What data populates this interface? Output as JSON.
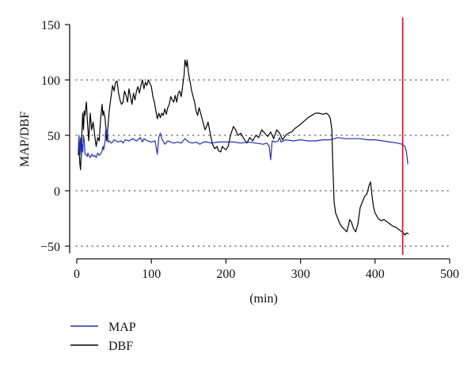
{
  "chart_data": {
    "type": "line",
    "title": "",
    "xlabel": "(min)",
    "ylabel": "MAP/DBF",
    "xlim": [
      -5,
      505
    ],
    "ylim": [
      -55,
      155
    ],
    "x_ticks": [
      0,
      100,
      200,
      300,
      400,
      500
    ],
    "y_ticks": [
      -50,
      0,
      50,
      100,
      150
    ],
    "grid": {
      "horizontal_dotted_at": [
        -50,
        0,
        50,
        100
      ]
    },
    "marker_line": {
      "x": 437,
      "color": "#c8102e"
    },
    "legend": {
      "placement": "bottom-left"
    },
    "series": [
      {
        "name": "MAP",
        "color": "#1f2fb5",
        "points": [
          [
            2,
            36
          ],
          [
            3,
            50
          ],
          [
            4,
            32
          ],
          [
            5,
            48
          ],
          [
            6,
            30
          ],
          [
            7,
            42
          ],
          [
            8,
            35
          ],
          [
            9,
            50
          ],
          [
            10,
            45
          ],
          [
            11,
            33
          ],
          [
            12,
            33
          ],
          [
            14,
            31
          ],
          [
            15,
            34
          ],
          [
            16,
            32
          ],
          [
            18,
            30
          ],
          [
            20,
            33
          ],
          [
            22,
            31
          ],
          [
            24,
            32
          ],
          [
            26,
            30
          ],
          [
            28,
            34
          ],
          [
            30,
            32
          ],
          [
            32,
            33
          ],
          [
            34,
            36
          ],
          [
            35,
            40
          ],
          [
            36,
            37
          ],
          [
            38,
            45
          ],
          [
            39,
            58
          ],
          [
            40,
            50
          ],
          [
            41,
            55
          ],
          [
            42,
            44
          ],
          [
            44,
            45
          ],
          [
            46,
            43
          ],
          [
            48,
            44
          ],
          [
            50,
            46
          ],
          [
            55,
            44
          ],
          [
            60,
            45
          ],
          [
            62,
            43
          ],
          [
            65,
            46
          ],
          [
            70,
            45
          ],
          [
            75,
            47
          ],
          [
            80,
            45
          ],
          [
            85,
            48
          ],
          [
            88,
            44
          ],
          [
            90,
            47
          ],
          [
            95,
            45
          ],
          [
            100,
            44
          ],
          [
            105,
            45
          ],
          [
            108,
            33
          ],
          [
            110,
            48
          ],
          [
            112,
            52
          ],
          [
            114,
            47
          ],
          [
            118,
            42
          ],
          [
            122,
            45
          ],
          [
            126,
            44
          ],
          [
            130,
            43
          ],
          [
            135,
            44
          ],
          [
            140,
            43
          ],
          [
            145,
            47
          ],
          [
            150,
            44
          ],
          [
            155,
            43
          ],
          [
            160,
            44
          ],
          [
            165,
            42
          ],
          [
            170,
            44
          ],
          [
            175,
            44
          ],
          [
            180,
            43
          ],
          [
            190,
            44
          ],
          [
            200,
            44
          ],
          [
            210,
            44
          ],
          [
            220,
            43
          ],
          [
            230,
            44
          ],
          [
            240,
            43
          ],
          [
            250,
            42
          ],
          [
            255,
            43
          ],
          [
            258,
            40
          ],
          [
            260,
            28
          ],
          [
            262,
            45
          ],
          [
            266,
            44
          ],
          [
            270,
            45
          ],
          [
            272,
            48
          ],
          [
            274,
            44
          ],
          [
            280,
            46
          ],
          [
            290,
            45
          ],
          [
            300,
            46
          ],
          [
            310,
            45
          ],
          [
            320,
            45
          ],
          [
            330,
            46
          ],
          [
            340,
            46
          ],
          [
            345,
            47
          ],
          [
            350,
            48
          ],
          [
            360,
            47
          ],
          [
            370,
            47
          ],
          [
            380,
            47
          ],
          [
            390,
            46
          ],
          [
            400,
            46
          ],
          [
            410,
            45
          ],
          [
            420,
            44
          ],
          [
            430,
            43
          ],
          [
            436,
            42
          ],
          [
            440,
            40
          ],
          [
            442,
            35
          ],
          [
            444,
            24
          ]
        ]
      },
      {
        "name": "DBF",
        "color": "#000000",
        "points": [
          [
            2,
            32
          ],
          [
            3,
            40
          ],
          [
            4,
            25
          ],
          [
            5,
            19
          ],
          [
            6,
            35
          ],
          [
            7,
            55
          ],
          [
            8,
            70
          ],
          [
            9,
            55
          ],
          [
            10,
            72
          ],
          [
            11,
            68
          ],
          [
            12,
            75
          ],
          [
            13,
            80
          ],
          [
            14,
            65
          ],
          [
            15,
            55
          ],
          [
            16,
            45
          ],
          [
            18,
            70
          ],
          [
            20,
            55
          ],
          [
            22,
            62
          ],
          [
            24,
            50
          ],
          [
            25,
            45
          ],
          [
            26,
            40
          ],
          [
            28,
            48
          ],
          [
            30,
            45
          ],
          [
            32,
            65
          ],
          [
            34,
            78
          ],
          [
            35,
            68
          ],
          [
            36,
            72
          ],
          [
            38,
            65
          ],
          [
            40,
            45
          ],
          [
            42,
            60
          ],
          [
            44,
            75
          ],
          [
            46,
            85
          ],
          [
            48,
            95
          ],
          [
            50,
            90
          ],
          [
            52,
            98
          ],
          [
            54,
            99
          ],
          [
            56,
            88
          ],
          [
            58,
            82
          ],
          [
            60,
            78
          ],
          [
            62,
            80
          ],
          [
            64,
            90
          ],
          [
            66,
            86
          ],
          [
            68,
            80
          ],
          [
            70,
            92
          ],
          [
            72,
            85
          ],
          [
            74,
            78
          ],
          [
            76,
            88
          ],
          [
            78,
            82
          ],
          [
            80,
            90
          ],
          [
            82,
            94
          ],
          [
            84,
            88
          ],
          [
            86,
            95
          ],
          [
            88,
            100
          ],
          [
            90,
            92
          ],
          [
            92,
            98
          ],
          [
            94,
            95
          ],
          [
            96,
            100
          ],
          [
            98,
            97
          ],
          [
            100,
            94
          ],
          [
            102,
            85
          ],
          [
            104,
            80
          ],
          [
            106,
            72
          ],
          [
            108,
            65
          ],
          [
            110,
            70
          ],
          [
            112,
            66
          ],
          [
            114,
            70
          ],
          [
            116,
            68
          ],
          [
            118,
            74
          ],
          [
            120,
            69
          ],
          [
            122,
            75
          ],
          [
            124,
            78
          ],
          [
            126,
            85
          ],
          [
            128,
            82
          ],
          [
            130,
            80
          ],
          [
            132,
            86
          ],
          [
            134,
            80
          ],
          [
            136,
            88
          ],
          [
            138,
            90
          ],
          [
            140,
            85
          ],
          [
            142,
            95
          ],
          [
            144,
            105
          ],
          [
            145,
            118
          ],
          [
            146,
            115
          ],
          [
            147,
            112
          ],
          [
            148,
            118
          ],
          [
            150,
            105
          ],
          [
            152,
            98
          ],
          [
            154,
            90
          ],
          [
            156,
            85
          ],
          [
            158,
            80
          ],
          [
            160,
            72
          ],
          [
            162,
            68
          ],
          [
            164,
            75
          ],
          [
            166,
            70
          ],
          [
            168,
            65
          ],
          [
            170,
            60
          ],
          [
            172,
            55
          ],
          [
            174,
            58
          ],
          [
            176,
            62
          ],
          [
            178,
            55
          ],
          [
            180,
            48
          ],
          [
            182,
            42
          ],
          [
            185,
            38
          ],
          [
            188,
            40
          ],
          [
            190,
            36
          ],
          [
            193,
            35
          ],
          [
            195,
            40
          ],
          [
            198,
            38
          ],
          [
            200,
            37
          ],
          [
            203,
            40
          ],
          [
            206,
            50
          ],
          [
            210,
            58
          ],
          [
            213,
            55
          ],
          [
            216,
            50
          ],
          [
            220,
            52
          ],
          [
            224,
            47
          ],
          [
            228,
            43
          ],
          [
            232,
            48
          ],
          [
            236,
            45
          ],
          [
            240,
            50
          ],
          [
            244,
            48
          ],
          [
            248,
            55
          ],
          [
            252,
            52
          ],
          [
            256,
            49
          ],
          [
            260,
            53
          ],
          [
            264,
            47
          ],
          [
            268,
            55
          ],
          [
            272,
            52
          ],
          [
            276,
            46
          ],
          [
            280,
            50
          ],
          [
            284,
            52
          ],
          [
            288,
            53
          ],
          [
            292,
            56
          ],
          [
            296,
            58
          ],
          [
            300,
            60
          ],
          [
            305,
            63
          ],
          [
            310,
            66
          ],
          [
            315,
            68
          ],
          [
            320,
            70
          ],
          [
            325,
            70
          ],
          [
            330,
            69
          ],
          [
            335,
            70
          ],
          [
            338,
            68
          ],
          [
            340,
            65
          ],
          [
            342,
            55
          ],
          [
            343,
            30
          ],
          [
            345,
            -10
          ],
          [
            347,
            -20
          ],
          [
            350,
            -25
          ],
          [
            353,
            -30
          ],
          [
            356,
            -33
          ],
          [
            359,
            -35
          ],
          [
            362,
            -37
          ],
          [
            364,
            -32
          ],
          [
            366,
            -26
          ],
          [
            368,
            -28
          ],
          [
            371,
            -34
          ],
          [
            374,
            -37
          ],
          [
            377,
            -30
          ],
          [
            380,
            -15
          ],
          [
            383,
            -10
          ],
          [
            386,
            -5
          ],
          [
            389,
            -3
          ],
          [
            392,
            5
          ],
          [
            394,
            8
          ],
          [
            396,
            -5
          ],
          [
            398,
            -15
          ],
          [
            400,
            -20
          ],
          [
            404,
            -25
          ],
          [
            408,
            -27
          ],
          [
            412,
            -26
          ],
          [
            416,
            -28
          ],
          [
            420,
            -30
          ],
          [
            424,
            -32
          ],
          [
            428,
            -33
          ],
          [
            432,
            -35
          ],
          [
            436,
            -37
          ],
          [
            438,
            -38
          ],
          [
            440,
            -40
          ],
          [
            442,
            -38
          ],
          [
            445,
            -39
          ]
        ]
      }
    ]
  }
}
